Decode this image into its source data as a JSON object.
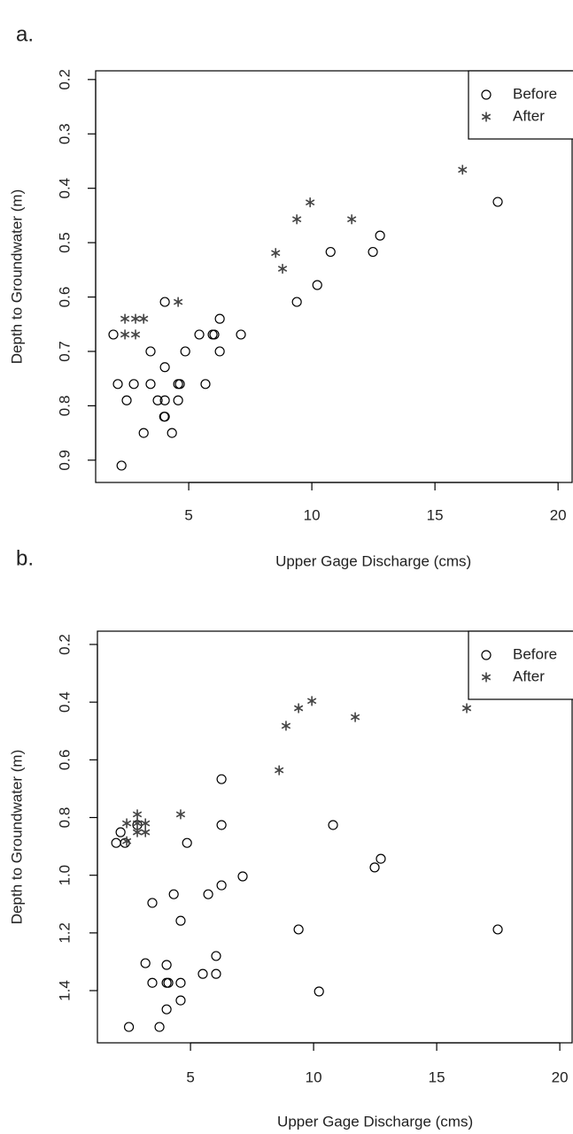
{
  "chart_data": [
    {
      "type": "scatter",
      "label": "a.",
      "x_label": "Upper Gage Discharge (cms)",
      "y_label": "Depth to Groundwater (m)",
      "xlim": [
        1.22,
        20.57
      ],
      "xticks": [
        5,
        10,
        15,
        20
      ],
      "ylim": [
        0.184,
        0.941
      ],
      "yticks": [
        0.2,
        0.3,
        0.4,
        0.5,
        0.6,
        0.7,
        0.8,
        0.9
      ],
      "y_inverted": true,
      "legend": "top-right",
      "series": [
        {
          "name": "Before",
          "color": "#000000",
          "marker": "circle",
          "x": [
            17.55,
            12.77,
            12.48,
            10.76,
            10.22,
            9.39,
            4.03,
            6.26,
            1.94,
            5.43,
            5.97,
            6.04,
            7.12,
            3.45,
            4.86,
            6.26,
            4.03,
            2.12,
            2.77,
            3.45,
            4.57,
            4.64,
            5.68,
            2.48,
            3.74,
            4.03,
            4.57,
            4.03,
            4.0,
            3.17,
            4.32,
            2.27
          ],
          "y": [
            0.425,
            0.487,
            0.517,
            0.517,
            0.578,
            0.609,
            0.609,
            0.64,
            0.669,
            0.669,
            0.669,
            0.669,
            0.669,
            0.7,
            0.7,
            0.7,
            0.729,
            0.76,
            0.76,
            0.76,
            0.76,
            0.76,
            0.76,
            0.79,
            0.79,
            0.79,
            0.79,
            0.82,
            0.82,
            0.85,
            0.85,
            0.91
          ]
        },
        {
          "name": "After",
          "color": "#444444",
          "marker": "asterisk",
          "x": [
            16.12,
            9.93,
            11.62,
            9.39,
            8.53,
            8.81,
            4.57,
            2.41,
            2.84,
            3.17,
            2.41,
            2.84
          ],
          "y": [
            0.366,
            0.426,
            0.457,
            0.457,
            0.519,
            0.548,
            0.609,
            0.64,
            0.64,
            0.64,
            0.669,
            0.669
          ]
        }
      ]
    },
    {
      "type": "scatter",
      "label": "b.",
      "x_label": "Upper Gage Discharge (cms)",
      "y_label": "Depth to Groundwater (m)",
      "xlim": [
        1.22,
        20.5
      ],
      "xticks": [
        5,
        10,
        15,
        20
      ],
      "ylim": [
        0.154,
        1.581
      ],
      "yticks": [
        0.2,
        0.4,
        0.6,
        0.8,
        {
          "value": 1,
          "label": "1.0"
        },
        1.2,
        1.4
      ],
      "y_inverted": true,
      "legend": "top-right",
      "series": [
        {
          "name": "Before",
          "color": "#000000",
          "marker": "circle",
          "x": [
            17.48,
            12.73,
            12.48,
            10.79,
            10.22,
            9.39,
            6.26,
            6.26,
            6.26,
            7.12,
            4.86,
            5.72,
            4.32,
            3.45,
            4.6,
            3.17,
            4.03,
            6.04,
            6.04,
            5.5,
            3.45,
            4.03,
            4.1,
            4.6,
            4.6,
            4.03,
            3.74,
            2.5,
            1.98,
            2.16,
            2.34,
            2.84
          ],
          "y": [
            1.188,
            0.943,
            0.973,
            0.826,
            1.403,
            1.188,
            0.667,
            0.826,
            1.035,
            1.004,
            0.888,
            1.066,
            1.066,
            1.096,
            1.158,
            1.305,
            1.311,
            1.28,
            1.342,
            1.342,
            1.373,
            1.373,
            1.373,
            1.373,
            1.434,
            1.465,
            1.526,
            1.526,
            0.888,
            0.851,
            0.888,
            0.826
          ]
        },
        {
          "name": "After",
          "color": "#444444",
          "marker": "asterisk",
          "x": [
            16.22,
            9.93,
            9.39,
            11.69,
            8.88,
            8.6,
            4.6,
            2.84,
            2.41,
            2.84,
            3.17,
            2.84,
            3.17,
            2.41
          ],
          "y": [
            0.421,
            0.396,
            0.421,
            0.452,
            0.482,
            0.636,
            0.789,
            0.789,
            0.82,
            0.82,
            0.82,
            0.851,
            0.851,
            0.882
          ]
        }
      ]
    }
  ]
}
